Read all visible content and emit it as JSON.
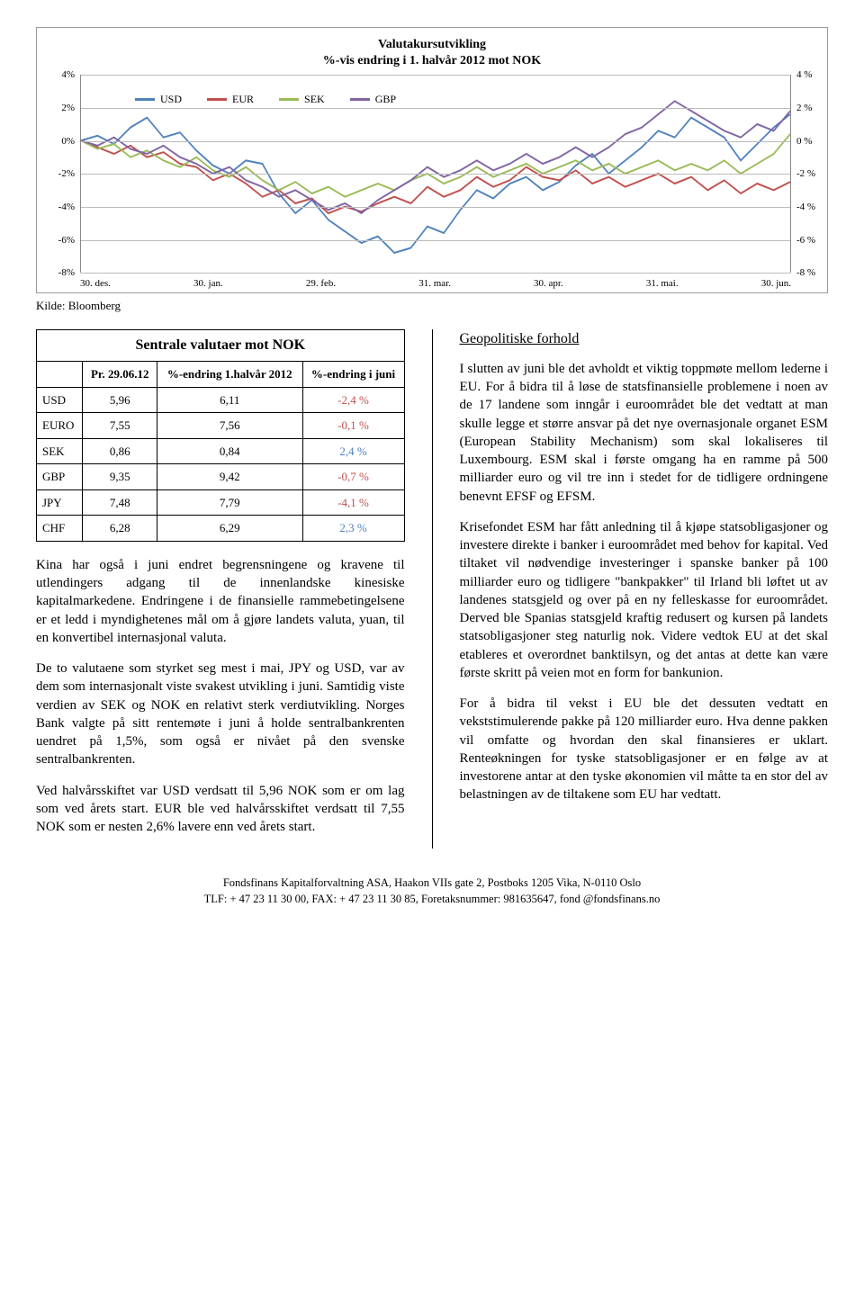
{
  "chart": {
    "title_line1": "Valutakursutvikling",
    "title_line2": "%-vis endring i 1. halvår 2012 mot NOK",
    "legend": [
      {
        "label": "USD",
        "color": "#4f81bd"
      },
      {
        "label": "EUR",
        "color": "#c0504d"
      },
      {
        "label": "SEK",
        "color": "#9bbb59"
      },
      {
        "label": "GBP",
        "color": "#8064a2"
      }
    ],
    "y_ticks_left": [
      "4%",
      "2%",
      "0%",
      "-2%",
      "-4%",
      "-6%",
      "-8%"
    ],
    "y_ticks_right": [
      "4 %",
      "2 %",
      "0 %",
      "-2 %",
      "-4 %",
      "-6 %",
      "-8 %"
    ],
    "ylim": [
      -8,
      4
    ],
    "x_labels": [
      "30. des.",
      "30. jan.",
      "29. feb.",
      "31. mar.",
      "30. apr.",
      "31. mai.",
      "30. jun."
    ],
    "background_color": "#ffffff",
    "grid_color": "#bbbbbb",
    "line_width": 2,
    "series": {
      "USD": [
        0,
        0.3,
        -0.2,
        0.8,
        1.4,
        0.2,
        0.5,
        -0.6,
        -1.5,
        -2.0,
        -1.2,
        -1.4,
        -3.2,
        -4.4,
        -3.6,
        -4.8,
        -5.5,
        -6.2,
        -5.8,
        -6.8,
        -6.5,
        -5.2,
        -5.6,
        -4.2,
        -3.0,
        -3.5,
        -2.6,
        -2.2,
        -3.0,
        -2.5,
        -1.5,
        -0.8,
        -2.0,
        -1.2,
        -0.4,
        0.6,
        0.2,
        1.4,
        0.8,
        0.2,
        -1.2,
        -0.2,
        0.8,
        1.6
      ],
      "EUR": [
        0,
        -0.4,
        -0.8,
        -0.3,
        -1.0,
        -0.7,
        -1.4,
        -1.6,
        -2.4,
        -2.0,
        -2.6,
        -3.4,
        -3.0,
        -3.8,
        -3.5,
        -4.4,
        -4.0,
        -4.3,
        -3.8,
        -3.4,
        -3.8,
        -2.8,
        -3.4,
        -3.0,
        -2.2,
        -2.8,
        -2.4,
        -1.6,
        -2.2,
        -2.4,
        -1.8,
        -2.6,
        -2.2,
        -2.8,
        -2.4,
        -2.0,
        -2.6,
        -2.2,
        -3.0,
        -2.4,
        -3.2,
        -2.6,
        -3.0,
        -2.5
      ],
      "SEK": [
        0,
        -0.5,
        -0.2,
        -1.0,
        -0.6,
        -1.2,
        -1.6,
        -1.0,
        -1.8,
        -2.2,
        -1.6,
        -2.4,
        -3.0,
        -2.5,
        -3.2,
        -2.8,
        -3.4,
        -3.0,
        -2.6,
        -3.0,
        -2.4,
        -2.0,
        -2.6,
        -2.2,
        -1.6,
        -2.2,
        -1.8,
        -1.4,
        -2.0,
        -1.6,
        -1.2,
        -1.8,
        -1.4,
        -2.0,
        -1.6,
        -1.2,
        -1.8,
        -1.4,
        -1.8,
        -1.2,
        -2.0,
        -1.4,
        -0.8,
        0.4
      ],
      "GBP": [
        0,
        -0.3,
        0.2,
        -0.5,
        -0.8,
        -0.3,
        -1.0,
        -1.4,
        -2.0,
        -1.6,
        -2.4,
        -2.8,
        -3.4,
        -3.0,
        -3.6,
        -4.2,
        -3.8,
        -4.4,
        -3.6,
        -3.0,
        -2.4,
        -1.6,
        -2.2,
        -1.8,
        -1.2,
        -1.8,
        -1.4,
        -0.8,
        -1.4,
        -1.0,
        -0.4,
        -1.0,
        -0.4,
        0.4,
        0.8,
        1.6,
        2.4,
        1.8,
        1.2,
        0.6,
        0.2,
        1.0,
        0.6,
        1.8
      ]
    }
  },
  "source_label": "Kilde: Bloomberg",
  "table": {
    "title": "Sentrale valutaer mot NOK",
    "headers": [
      "",
      "Pr. 29.06.12",
      "%-endring 1.halvår 2012",
      "%-endring i juni"
    ],
    "rows": [
      {
        "label": "USD",
        "c1": "5,96",
        "c2": "6,11",
        "c3": "-2,4 %",
        "cls": "neg"
      },
      {
        "label": "EURO",
        "c1": "7,55",
        "c2": "7,56",
        "c3": "-0,1 %",
        "cls": "neg"
      },
      {
        "label": "SEK",
        "c1": "0,86",
        "c2": "0,84",
        "c3": "2,4 %",
        "cls": "pos"
      },
      {
        "label": "GBP",
        "c1": "9,35",
        "c2": "9,42",
        "c3": "-0,7 %",
        "cls": "neg"
      },
      {
        "label": "JPY",
        "c1": "7,48",
        "c2": "7,79",
        "c3": "-4,1 %",
        "cls": "neg"
      },
      {
        "label": "CHF",
        "c1": "6,28",
        "c2": "6,29",
        "c3": "2,3 %",
        "cls": "pos"
      }
    ]
  },
  "left_col": {
    "p1": "Kina har også i juni endret begrensningene og kravene til utlendingers adgang til de innenlandske kinesiske kapitalmarkedene. Endringene i de finansielle rammebetingelsene er et ledd i myndighetenes mål om å gjøre landets valuta, yuan, til en konvertibel internasjonal valuta.",
    "p2": "De to valutaene som styrket seg mest i mai, JPY og USD, var av dem som internasjonalt viste svakest utvikling i juni. Samtidig viste verdien av SEK og NOK en relativt sterk verdiutvikling. Norges Bank valgte på sitt rentemøte i juni å holde sentralbankrenten uendret på 1,5%, som også er nivået på den svenske sentralbankrenten.",
    "p3": "Ved halvårsskiftet var USD verdsatt til 5,96 NOK som er om lag som ved årets start. EUR ble ved halvårsskiftet verdsatt til 7,55 NOK som er nesten 2,6% lavere enn ved årets start."
  },
  "right_col": {
    "heading": "Geopolitiske forhold",
    "p1": "I slutten av juni ble det avholdt et viktig toppmøte mellom lederne i EU. For å bidra til å løse de statsfinansielle problemene i noen av de 17 landene som inngår i euroområdet ble det vedtatt at man skulle legge et større ansvar på det nye overnasjonale organet ESM (European Stability Mechanism) som skal lokaliseres til Luxembourg. ESM skal i første omgang ha en ramme på 500 milliarder euro og vil tre inn i stedet for de tidligere ordningene benevnt EFSF og EFSM.",
    "p2": "Krisefondet ESM har fått anledning til å kjøpe statsobligasjoner og investere direkte i banker i euroområdet med behov for kapital. Ved tiltaket vil nødvendige investeringer i spanske banker på 100 milliarder euro og tidligere \"bankpakker\" til Irland bli løftet ut av landenes statsgjeld og over på en ny felleskasse for euroområdet. Derved ble Spanias statsgjeld kraftig redusert og kursen på landets statsobligasjoner steg naturlig nok. Videre vedtok EU at det skal etableres et overordnet banktilsyn, og det antas at dette kan være første skritt på veien mot en form for bankunion.",
    "p3": "For å bidra til vekst i EU ble det dessuten vedtatt en vekststimulerende pakke på 120 milliarder euro. Hva denne pakken vil omfatte og hvordan den skal finansieres er uklart. Renteøkningen for tyske statsobligasjoner er en følge av at investorene antar at den tyske økonomien vil måtte ta en stor del av belastningen av de tiltakene som EU har vedtatt."
  },
  "footer": {
    "line1": "Fondsfinans Kapitalforvaltning ASA, Haakon VIIs gate 2, Postboks 1205 Vika, N-0110 Oslo",
    "line2": "TLF: + 47 23 11 30 00, FAX: + 47 23 11 30 85, Foretaksnummer: 981635647, fond @fondsfinans.no"
  }
}
